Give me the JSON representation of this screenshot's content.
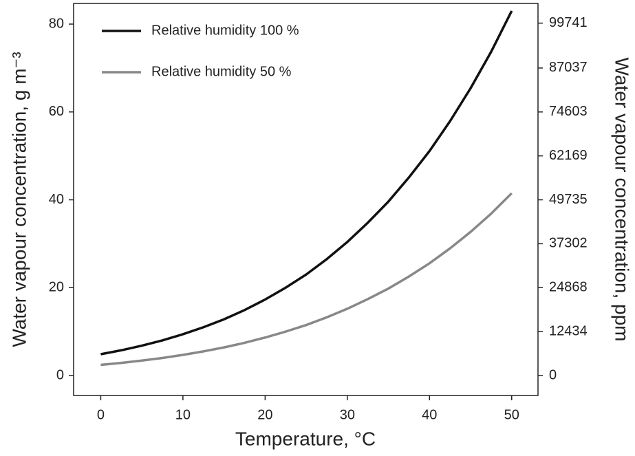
{
  "chart_data": {
    "type": "line",
    "x_label": "Temperature, °C",
    "y_label": "Water vapour concentration, g m⁻³",
    "y2_label": "Water vapour concentration, ppm",
    "x": [
      0,
      2.5,
      5,
      7.5,
      10,
      12.5,
      15,
      17.5,
      20,
      22.5,
      25,
      27.5,
      30,
      32.5,
      35,
      37.5,
      40,
      42.5,
      45,
      47.5,
      50
    ],
    "series": [
      {
        "name": "Relative humidity 100 %",
        "color": "#111111",
        "values": [
          4.85,
          5.75,
          6.8,
          8.0,
          9.4,
          11.0,
          12.8,
          14.9,
          17.3,
          20.0,
          23.0,
          26.5,
          30.4,
          34.8,
          39.6,
          45.1,
          51.1,
          57.9,
          65.4,
          73.7,
          83.0
        ]
      },
      {
        "name": "Relative humidity 50 %",
        "color": "#888888",
        "values": [
          2.43,
          2.88,
          3.4,
          4.0,
          4.7,
          5.5,
          6.4,
          7.45,
          8.65,
          10.0,
          11.5,
          13.25,
          15.2,
          17.4,
          19.8,
          22.55,
          25.55,
          28.95,
          32.7,
          36.85,
          41.5
        ]
      }
    ],
    "xlim": [
      -3.3,
      53.2
    ],
    "xticks": [
      0,
      10,
      20,
      30,
      40,
      50
    ],
    "ylim": [
      -4.54,
      84.7
    ],
    "yticks": [
      0,
      20,
      40,
      60,
      80
    ],
    "y2lim": [
      -5645,
      105316
    ],
    "y2ticks": [
      0,
      12434,
      24868,
      37302,
      49735,
      62169,
      74603,
      87037,
      99741
    ],
    "legend": "upper-left",
    "grid": false
  }
}
